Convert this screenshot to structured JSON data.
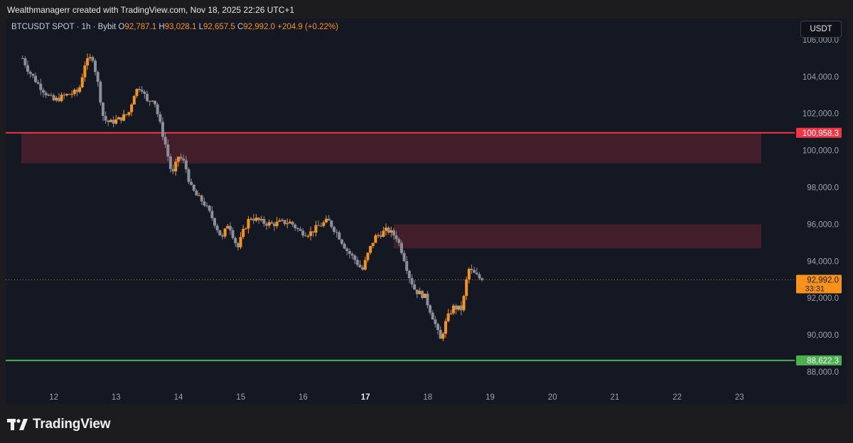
{
  "credit": "Wealthmanagerr created with TradingView.com, Nov 18, 2025 22:26 UTC+1",
  "legend": {
    "symbol": "BTCUSDT SPOT · 1h · Bybit",
    "o_label": "O",
    "o_value": "92,787.1",
    "h_label": "H",
    "h_value": "93,028.1",
    "l_label": "L",
    "l_value": "92,657.5",
    "c_label": "C",
    "c_value": "92,992.0",
    "change": "+204.9 (+0.22%)"
  },
  "currency_button": "USDT",
  "brand": "TradingView",
  "colors": {
    "background": "#141823",
    "up_candle": "#f7931a",
    "down_candle": "#8c8f99",
    "resistance": "#f23645",
    "support": "#4caf50",
    "zone_fill": "#4a1f2c",
    "last_price": "#f7931a"
  },
  "chart_data": {
    "type": "candlestick",
    "ylim": [
      87500,
      107000
    ],
    "y_ticks": [
      88000,
      90000,
      92000,
      94000,
      96000,
      98000,
      100000,
      102000,
      104000,
      106000
    ],
    "y_tick_labels": [
      "88,000.0",
      "90,000.0",
      "92,000.0",
      "94,000.0",
      "96,000.0",
      "98,000.0",
      "100,000.0",
      "102,000.0",
      "104,000.0",
      "106,000.0"
    ],
    "x_ticks": [
      12,
      13,
      14,
      15,
      16,
      17,
      18,
      19,
      20,
      21,
      22,
      23
    ],
    "x_tick_labels": [
      "12",
      "13",
      "14",
      "15",
      "16",
      "17",
      "18",
      "19",
      "20",
      "21",
      "22",
      "23"
    ],
    "x_tick_bold": [
      false,
      false,
      false,
      false,
      false,
      true,
      false,
      false,
      false,
      false,
      false,
      false
    ],
    "xlim": [
      11.48,
      23.35
    ],
    "close_path": [
      [
        11.5,
        105000
      ],
      [
        11.6,
        104300
      ],
      [
        11.75,
        103600
      ],
      [
        11.9,
        103000
      ],
      [
        12.0,
        102700
      ],
      [
        12.2,
        103000
      ],
      [
        12.4,
        103200
      ],
      [
        12.5,
        104700
      ],
      [
        12.62,
        105100
      ],
      [
        12.7,
        103800
      ],
      [
        12.8,
        101700
      ],
      [
        12.9,
        101500
      ],
      [
        13.05,
        101700
      ],
      [
        13.2,
        102000
      ],
      [
        13.3,
        103200
      ],
      [
        13.4,
        103500
      ],
      [
        13.5,
        102600
      ],
      [
        13.6,
        102900
      ],
      [
        13.7,
        101500
      ],
      [
        13.8,
        100200
      ],
      [
        13.9,
        98600
      ],
      [
        14.0,
        99700
      ],
      [
        14.1,
        99300
      ],
      [
        14.2,
        98000
      ],
      [
        14.3,
        97500
      ],
      [
        14.4,
        97200
      ],
      [
        14.55,
        96300
      ],
      [
        14.7,
        95200
      ],
      [
        14.8,
        96100
      ],
      [
        14.95,
        94700
      ],
      [
        15.05,
        95700
      ],
      [
        15.15,
        96400
      ],
      [
        15.35,
        96100
      ],
      [
        15.5,
        96000
      ],
      [
        15.65,
        96100
      ],
      [
        15.8,
        96100
      ],
      [
        15.95,
        95600
      ],
      [
        16.1,
        95500
      ],
      [
        16.25,
        95900
      ],
      [
        16.4,
        96200
      ],
      [
        16.55,
        95500
      ],
      [
        16.7,
        94600
      ],
      [
        16.85,
        94000
      ],
      [
        16.95,
        93500
      ],
      [
        17.05,
        94500
      ],
      [
        17.15,
        95300
      ],
      [
        17.35,
        95700
      ],
      [
        17.5,
        95300
      ],
      [
        17.6,
        94400
      ],
      [
        17.7,
        93200
      ],
      [
        17.8,
        92400
      ],
      [
        17.95,
        92100
      ],
      [
        18.1,
        90800
      ],
      [
        18.2,
        89700
      ],
      [
        18.3,
        90800
      ],
      [
        18.4,
        91500
      ],
      [
        18.55,
        91400
      ],
      [
        18.65,
        93600
      ],
      [
        18.78,
        93200
      ],
      [
        18.87,
        92992
      ]
    ],
    "candle_count": 178,
    "resistance_line": {
      "value": 100958.3,
      "label": "100,958.3"
    },
    "support_line": {
      "value": 88622.3,
      "label": "88,622.3"
    },
    "zones": [
      {
        "from_x": 11.48,
        "to_x": 23.35,
        "y_low": 99300,
        "y_high": 100958.3
      },
      {
        "from_x": 17.45,
        "to_x": 23.35,
        "y_low": 94700,
        "y_high": 96000
      }
    ],
    "last_price": {
      "value": 92992.0,
      "label": "92,992.0",
      "countdown": "33:31"
    }
  }
}
